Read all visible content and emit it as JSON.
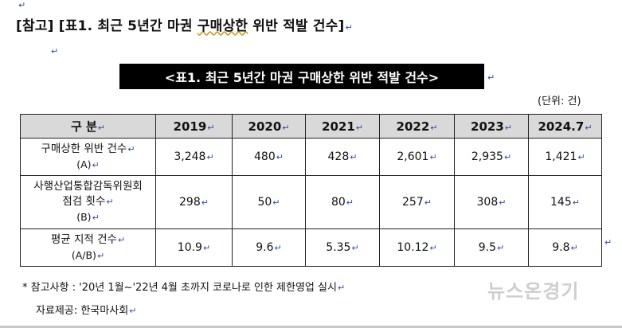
{
  "paragraph_mark": "↵",
  "reference_prefix": "[참고] [표1. 최근 5년간 마권 ",
  "reference_underlined": "구매상한",
  "reference_suffix": " 위반 적발 건수]",
  "table_title": "<표1. 최근 5년간 마권 구매상한 위반 적발 건수>",
  "unit": "(단위: 건)",
  "table": {
    "header_label": "구  분",
    "years": [
      "2019",
      "2020",
      "2021",
      "2022",
      "2023",
      "2024.7"
    ],
    "rows": [
      {
        "label_lines": [
          "구매상한 위반 건수",
          "(A)"
        ],
        "values": [
          "3,248",
          "480",
          "428",
          "2,601",
          "2,935",
          "1,421"
        ]
      },
      {
        "label_lines": [
          "사행산업통합감독위원회",
          "점검 횟수",
          "(B)"
        ],
        "values": [
          "298",
          "50",
          "80",
          "257",
          "308",
          "145"
        ]
      },
      {
        "label_lines": [
          "평균 지적 건수",
          "(A/B)"
        ],
        "values": [
          "10.9",
          "9.6",
          "5.35",
          "10.12",
          "9.5",
          "9.8"
        ]
      }
    ]
  },
  "footnote": "* 참고사항 : '20년 1월~'22년 4월 초까지 코로나로 인한 제한영업 실시",
  "provider": "자료제공: 한국마사회",
  "watermark": "뉴스온경기"
}
